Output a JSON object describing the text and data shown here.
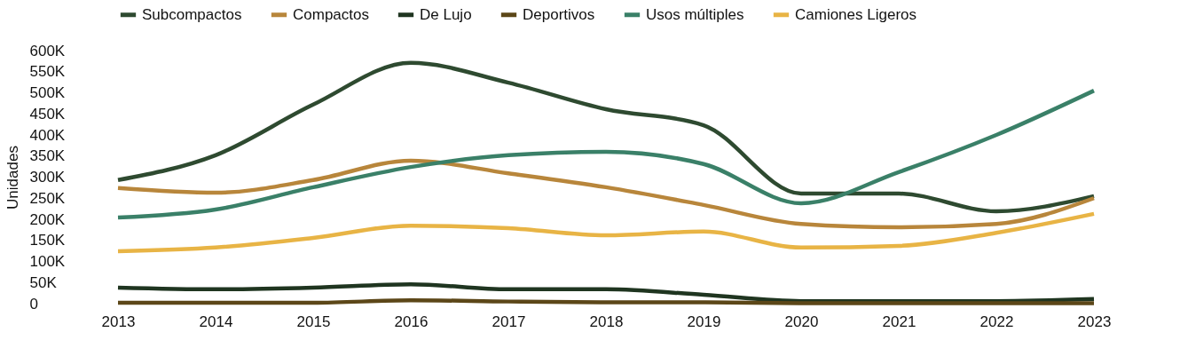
{
  "chart_data": {
    "type": "line",
    "ylabel": "Unidades",
    "categories": [
      "2013",
      "2014",
      "2015",
      "2016",
      "2017",
      "2018",
      "2019",
      "2020",
      "2021",
      "2022",
      "2023"
    ],
    "series": [
      {
        "name": "Subcompactos",
        "color": "#2e4a30",
        "values": [
          293000,
          352000,
          472000,
          571000,
          524000,
          461000,
          423000,
          261000,
          261000,
          219000,
          255000
        ]
      },
      {
        "name": "Compactos",
        "color": "#b8863b",
        "values": [
          274000,
          263000,
          293000,
          339000,
          309000,
          276000,
          234000,
          189000,
          181000,
          189000,
          250000
        ]
      },
      {
        "name": "De Lujo",
        "color": "#1f3520",
        "values": [
          38000,
          34000,
          38000,
          46000,
          34000,
          34000,
          21000,
          6000,
          6000,
          6000,
          11000
        ]
      },
      {
        "name": "Deportivos",
        "color": "#5c4718",
        "values": [
          2000,
          2000,
          2000,
          8000,
          5000,
          3000,
          3000,
          1000,
          1000,
          1000,
          1000
        ]
      },
      {
        "name": "Usos múltiples",
        "color": "#3a8068",
        "values": [
          204000,
          223000,
          276000,
          324000,
          352000,
          360000,
          331000,
          238000,
          312000,
          400000,
          505000
        ]
      },
      {
        "name": "Camiones Ligeros",
        "color": "#e8b445",
        "values": [
          124000,
          133000,
          156000,
          185000,
          179000,
          162000,
          171000,
          133000,
          137000,
          168000,
          213000
        ]
      }
    ],
    "ylim": [
      0,
      600000
    ],
    "yticks": [
      0,
      {
        "value": 50000,
        "label": "50K"
      },
      {
        "value": 100000,
        "label": "100K"
      },
      {
        "value": 150000,
        "label": "150K"
      },
      {
        "value": 200000,
        "label": "200K"
      },
      {
        "value": 250000,
        "label": "250K"
      },
      {
        "value": 300000,
        "label": "300K"
      },
      {
        "value": 350000,
        "label": "350K"
      },
      {
        "value": 400000,
        "label": "400K"
      },
      {
        "value": 450000,
        "label": "450K"
      },
      {
        "value": 500000,
        "label": "500K"
      },
      {
        "value": 550000,
        "label": "550K"
      },
      {
        "value": 600000,
        "label": "600K"
      }
    ],
    "legend": "top",
    "grid": false,
    "marker": "none",
    "line_style": "solid"
  }
}
